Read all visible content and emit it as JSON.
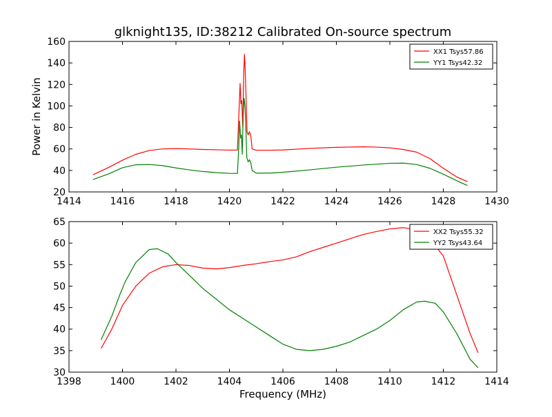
{
  "title": "glknight135, ID:38212 Calibrated On-source spectrum",
  "chart_data": [
    {
      "type": "line",
      "ylabel": "Power in Kelvin",
      "xlabel": "",
      "xlim": [
        1414,
        1430
      ],
      "ylim": [
        20,
        160
      ],
      "xticks": [
        1414,
        1416,
        1418,
        1420,
        1422,
        1424,
        1426,
        1428,
        1430
      ],
      "yticks": [
        20,
        40,
        60,
        80,
        100,
        120,
        140,
        160
      ],
      "legend_position": "top-right",
      "series": [
        {
          "name": "XX1 Tsys57.86",
          "color": "#ff0000",
          "points": [
            [
              1414.9,
              36
            ],
            [
              1415.5,
              43
            ],
            [
              1416,
              49.5
            ],
            [
              1416.5,
              55
            ],
            [
              1417,
              58.5
            ],
            [
              1417.5,
              60
            ],
            [
              1418,
              60.3
            ],
            [
              1418.5,
              60
            ],
            [
              1419,
              59.5
            ],
            [
              1419.5,
              59.2
            ],
            [
              1420.0,
              58.9
            ],
            [
              1420.3,
              59
            ],
            [
              1420.35,
              90
            ],
            [
              1420.4,
              121
            ],
            [
              1420.43,
              102
            ],
            [
              1420.46,
              105
            ],
            [
              1420.5,
              80
            ],
            [
              1420.53,
              126
            ],
            [
              1420.56,
              148
            ],
            [
              1420.58,
              140
            ],
            [
              1420.62,
              110
            ],
            [
              1420.66,
              76
            ],
            [
              1420.7,
              73
            ],
            [
              1420.75,
              76
            ],
            [
              1420.8,
              72
            ],
            [
              1420.85,
              60
            ],
            [
              1421,
              58.8
            ],
            [
              1421.5,
              58.8
            ],
            [
              1422,
              59
            ],
            [
              1423,
              60.5
            ],
            [
              1424,
              61.5
            ],
            [
              1425,
              62
            ],
            [
              1425.5,
              61.7
            ],
            [
              1426,
              61
            ],
            [
              1426.5,
              59.5
            ],
            [
              1427,
              57
            ],
            [
              1427.5,
              51
            ],
            [
              1428,
              42
            ],
            [
              1428.5,
              34
            ],
            [
              1428.9,
              29.5
            ]
          ]
        },
        {
          "name": "YY1 Tsys42.32",
          "color": "#008000",
          "points": [
            [
              1414.9,
              31.5
            ],
            [
              1415.5,
              37
            ],
            [
              1416,
              42.5
            ],
            [
              1416.5,
              45.3
            ],
            [
              1417,
              45.5
            ],
            [
              1417.5,
              44.5
            ],
            [
              1418,
              42.3
            ],
            [
              1418.5,
              40.5
            ],
            [
              1419,
              39
            ],
            [
              1419.5,
              38
            ],
            [
              1420.0,
              37.3
            ],
            [
              1420.3,
              37.2
            ],
            [
              1420.35,
              62
            ],
            [
              1420.38,
              86
            ],
            [
              1420.42,
              70
            ],
            [
              1420.45,
              73
            ],
            [
              1420.48,
              55
            ],
            [
              1420.52,
              96
            ],
            [
              1420.55,
              107
            ],
            [
              1420.58,
              100
            ],
            [
              1420.62,
              75
            ],
            [
              1420.65,
              52
            ],
            [
              1420.7,
              48
            ],
            [
              1420.75,
              50
            ],
            [
              1420.8,
              47
            ],
            [
              1420.85,
              40
            ],
            [
              1421,
              37.5
            ],
            [
              1421.5,
              37.5
            ],
            [
              1422,
              38.3
            ],
            [
              1423,
              40.5
            ],
            [
              1424,
              43
            ],
            [
              1425,
              45
            ],
            [
              1426,
              46.6
            ],
            [
              1426.5,
              46.8
            ],
            [
              1427,
              45.5
            ],
            [
              1427.5,
              42
            ],
            [
              1428,
              36.5
            ],
            [
              1428.5,
              30.5
            ],
            [
              1428.9,
              26
            ]
          ]
        }
      ]
    },
    {
      "type": "line",
      "xlabel": "Frequency (MHz)",
      "ylabel": "",
      "xlim": [
        1398,
        1414
      ],
      "ylim": [
        30,
        65
      ],
      "xticks": [
        1398,
        1400,
        1402,
        1404,
        1406,
        1408,
        1410,
        1412,
        1414
      ],
      "yticks": [
        30,
        35,
        40,
        45,
        50,
        55,
        60,
        65
      ],
      "legend_position": "top-right",
      "series": [
        {
          "name": "XX2 Tsys55.32",
          "color": "#ff0000",
          "points": [
            [
              1399.2,
              35.5
            ],
            [
              1399.6,
              40
            ],
            [
              1400,
              45.5
            ],
            [
              1400.5,
              50
            ],
            [
              1401,
              53
            ],
            [
              1401.5,
              54.5
            ],
            [
              1402,
              55
            ],
            [
              1402.5,
              54.8
            ],
            [
              1403,
              54.2
            ],
            [
              1403.5,
              54
            ],
            [
              1404,
              54.3
            ],
            [
              1404.5,
              54.8
            ],
            [
              1405,
              55.2
            ],
            [
              1405.5,
              55.7
            ],
            [
              1406,
              56.1
            ],
            [
              1406.5,
              56.8
            ],
            [
              1407,
              58
            ],
            [
              1407.5,
              59
            ],
            [
              1408,
              60
            ],
            [
              1408.5,
              61
            ],
            [
              1409,
              62
            ],
            [
              1409.5,
              62.7
            ],
            [
              1410,
              63.3
            ],
            [
              1410.5,
              63.6
            ],
            [
              1411,
              63.1
            ],
            [
              1411.5,
              61
            ],
            [
              1412,
              57
            ],
            [
              1412.5,
              48
            ],
            [
              1413,
              39
            ],
            [
              1413.3,
              34.5
            ]
          ]
        },
        {
          "name": "YY2 Tsys43.64",
          "color": "#008000",
          "points": [
            [
              1399.2,
              37.5
            ],
            [
              1399.6,
              43
            ],
            [
              1399.9,
              48
            ],
            [
              1400.1,
              51
            ],
            [
              1400.5,
              55.5
            ],
            [
              1401,
              58.5
            ],
            [
              1401.3,
              58.7
            ],
            [
              1401.7,
              57.5
            ],
            [
              1402,
              55.5
            ],
            [
              1402.5,
              52.5
            ],
            [
              1403,
              49.5
            ],
            [
              1403.5,
              47
            ],
            [
              1404,
              44.5
            ],
            [
              1404.5,
              42.5
            ],
            [
              1405,
              40.5
            ],
            [
              1405.5,
              38.5
            ],
            [
              1406,
              36.5
            ],
            [
              1406.3,
              35.8
            ],
            [
              1406.5,
              35.3
            ],
            [
              1407,
              35
            ],
            [
              1407.5,
              35.3
            ],
            [
              1408,
              36
            ],
            [
              1408.5,
              37
            ],
            [
              1409,
              38.5
            ],
            [
              1409.5,
              40
            ],
            [
              1410,
              42
            ],
            [
              1410.5,
              44.5
            ],
            [
              1411,
              46.3
            ],
            [
              1411.3,
              46.5
            ],
            [
              1411.7,
              46
            ],
            [
              1412,
              44
            ],
            [
              1412.5,
              39
            ],
            [
              1413,
              33
            ],
            [
              1413.3,
              31
            ]
          ]
        }
      ]
    }
  ]
}
